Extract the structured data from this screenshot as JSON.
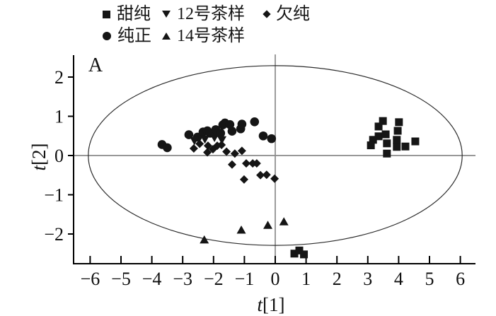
{
  "panel_label": "A",
  "legend": {
    "items": [
      {
        "marker": "square",
        "label": "甜纯"
      },
      {
        "marker": "triangle-down",
        "label": "12号茶样"
      },
      {
        "marker": "diamond",
        "label": "欠纯"
      },
      {
        "marker": "circle",
        "label": "纯正"
      },
      {
        "marker": "triangle-up",
        "label": "14号茶样"
      }
    ]
  },
  "chart_data": {
    "type": "scatter",
    "title": "",
    "xlabel": "t[1]",
    "ylabel": "t[2]",
    "xlim": [
      -6.6,
      6.5
    ],
    "ylim": [
      -2.8,
      2.6
    ],
    "x_ticks": [
      -6,
      -5,
      -4,
      -3,
      -2,
      -1,
      0,
      1,
      2,
      3,
      4,
      5,
      6
    ],
    "y_ticks": [
      -2,
      -1,
      0,
      1,
      2
    ],
    "grid": false,
    "crosshair_at_zero": true,
    "legend_position": "top",
    "hotelling_ellipse": {
      "cx": 0,
      "cy": 0,
      "rx": 6.06,
      "ry": 2.29
    },
    "series": [
      {
        "name": "甜纯",
        "marker": "square",
        "points": [
          [
            3.49,
            0.88
          ],
          [
            3.35,
            0.74
          ],
          [
            4.01,
            0.85
          ],
          [
            3.97,
            0.63
          ],
          [
            3.35,
            0.49
          ],
          [
            3.58,
            0.54
          ],
          [
            3.17,
            0.4
          ],
          [
            3.1,
            0.26
          ],
          [
            3.62,
            0.31
          ],
          [
            3.94,
            0.4
          ],
          [
            3.94,
            0.22
          ],
          [
            4.22,
            0.23
          ],
          [
            4.54,
            0.36
          ],
          [
            3.62,
            0.05
          ],
          [
            0.62,
            -2.5
          ],
          [
            0.78,
            -2.42
          ],
          [
            0.93,
            -2.52
          ]
        ]
      },
      {
        "name": "纯正",
        "marker": "circle",
        "points": [
          [
            -3.67,
            0.28
          ],
          [
            -3.5,
            0.2
          ],
          [
            -2.8,
            0.53
          ],
          [
            -2.52,
            0.47
          ],
          [
            -2.34,
            0.6
          ],
          [
            -2.2,
            0.63
          ],
          [
            -2.11,
            0.57
          ],
          [
            -1.93,
            0.66
          ],
          [
            -1.77,
            0.57
          ],
          [
            -1.7,
            0.78
          ],
          [
            -1.63,
            0.83
          ],
          [
            -1.47,
            0.79
          ],
          [
            -1.4,
            0.62
          ],
          [
            -1.12,
            0.68
          ],
          [
            -1.08,
            0.8
          ],
          [
            -0.67,
            0.86
          ],
          [
            -0.39,
            0.5
          ],
          [
            -0.12,
            0.43
          ]
        ]
      },
      {
        "name": "12号茶样",
        "marker": "triangle-down",
        "points": [
          [
            -2.62,
            0.38
          ],
          [
            -2.28,
            0.42
          ],
          [
            -1.97,
            0.46
          ],
          [
            -1.73,
            0.4
          ]
        ]
      },
      {
        "name": "14号茶样",
        "marker": "triangle-up",
        "points": [
          [
            -2.3,
            -2.15
          ],
          [
            -1.1,
            -1.9
          ],
          [
            -0.24,
            -1.78
          ],
          [
            0.28,
            -1.69
          ]
        ]
      },
      {
        "name": "欠纯",
        "marker": "diamond",
        "points": [
          [
            -2.64,
            0.18
          ],
          [
            -2.45,
            0.3
          ],
          [
            -2.18,
            0.25
          ],
          [
            -2.2,
            0.08
          ],
          [
            -2.02,
            0.16
          ],
          [
            -1.88,
            0.25
          ],
          [
            -1.74,
            0.27
          ],
          [
            -1.58,
            0.1
          ],
          [
            -1.31,
            0.05
          ],
          [
            -1.08,
            0.12
          ],
          [
            -1.4,
            -0.23
          ],
          [
            -1.01,
            -0.61
          ],
          [
            -0.94,
            -0.2
          ],
          [
            -0.73,
            -0.2
          ],
          [
            -0.6,
            -0.2
          ],
          [
            -0.48,
            -0.5
          ],
          [
            -0.28,
            -0.49
          ],
          [
            -0.02,
            -0.59
          ]
        ]
      }
    ]
  },
  "colors": {
    "marker": "#151515",
    "axis": "#000000",
    "crosshair": "#8a8a8a",
    "ellipse": "#2b2b2b",
    "background": "#ffffff"
  }
}
